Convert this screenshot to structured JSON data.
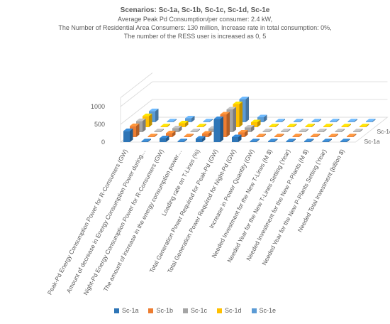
{
  "chart_data": {
    "type": "bar",
    "variant": "3d-column",
    "title": "Scenarios:  Sc-1a, Sc-1b, Sc-1c, Sc-1d, Sc-1e",
    "subtitle_lines": [
      "Average Peak Pd Consumption/per consumer: 2.4 kW,",
      "The Number of Residential Area Consumers: 130 million,          Increase rate in total consumption: 0%,",
      "The number of the RESS user is increased as 0, 5"
    ],
    "categories": [
      "Peak-Pd Energy Consumption Power for R-Consumers (GW)",
      "Amount of decrease in Energy Consumption Power during…",
      "Night-Pd Energy Consumption Power for R-Consumers (GW)",
      "The amount of increase in the energy consumption power…",
      "Loading rate on T-Lines (%)",
      "Total Generation Power Required for Peak-Pd (GW)",
      "Total Generation Power Required for Night-Pd (GW)",
      "Increase in Power Quantity (GW)",
      "Needed Investment for the New T-Lines (M $)",
      "Needed Year for the New T-Lines Setting (Year)",
      "Needed Investment for the New P-Plants (M $)",
      "Needed Year for the New P-Plants Setting (Year)",
      "Needed Total Investment (billion $)"
    ],
    "depth_labels": [
      "Sc-1a",
      "Sc-1c",
      "Sc-1e"
    ],
    "y_ticks": [
      "0",
      "500",
      "1000"
    ],
    "ylim": [
      0,
      1000
    ],
    "series": [
      {
        "name": "Sc-1a",
        "color": "#2e75b6",
        "values": [
          312,
          0,
          110,
          0,
          100,
          650,
          140,
          0,
          0,
          0,
          0,
          0,
          0
        ]
      },
      {
        "name": "Sc-1b",
        "color": "#ed7d31",
        "values": [
          312,
          0,
          110,
          0,
          100,
          640,
          130,
          0,
          0,
          0,
          0,
          0,
          0
        ]
      },
      {
        "name": "Sc-1c",
        "color": "#a5a5a5",
        "values": [
          312,
          0,
          110,
          0,
          100,
          640,
          130,
          0,
          0,
          0,
          0,
          0,
          0
        ]
      },
      {
        "name": "Sc-1d",
        "color": "#ffc000",
        "values": [
          312,
          0,
          110,
          0,
          100,
          650,
          140,
          0,
          0,
          0,
          0,
          0,
          0
        ]
      },
      {
        "name": "Sc-1e",
        "color": "#5b9bd5",
        "values": [
          312,
          0,
          110,
          0,
          100,
          650,
          140,
          0,
          0,
          0,
          0,
          0,
          0
        ]
      }
    ],
    "grid": true,
    "legend_position": "bottom"
  }
}
